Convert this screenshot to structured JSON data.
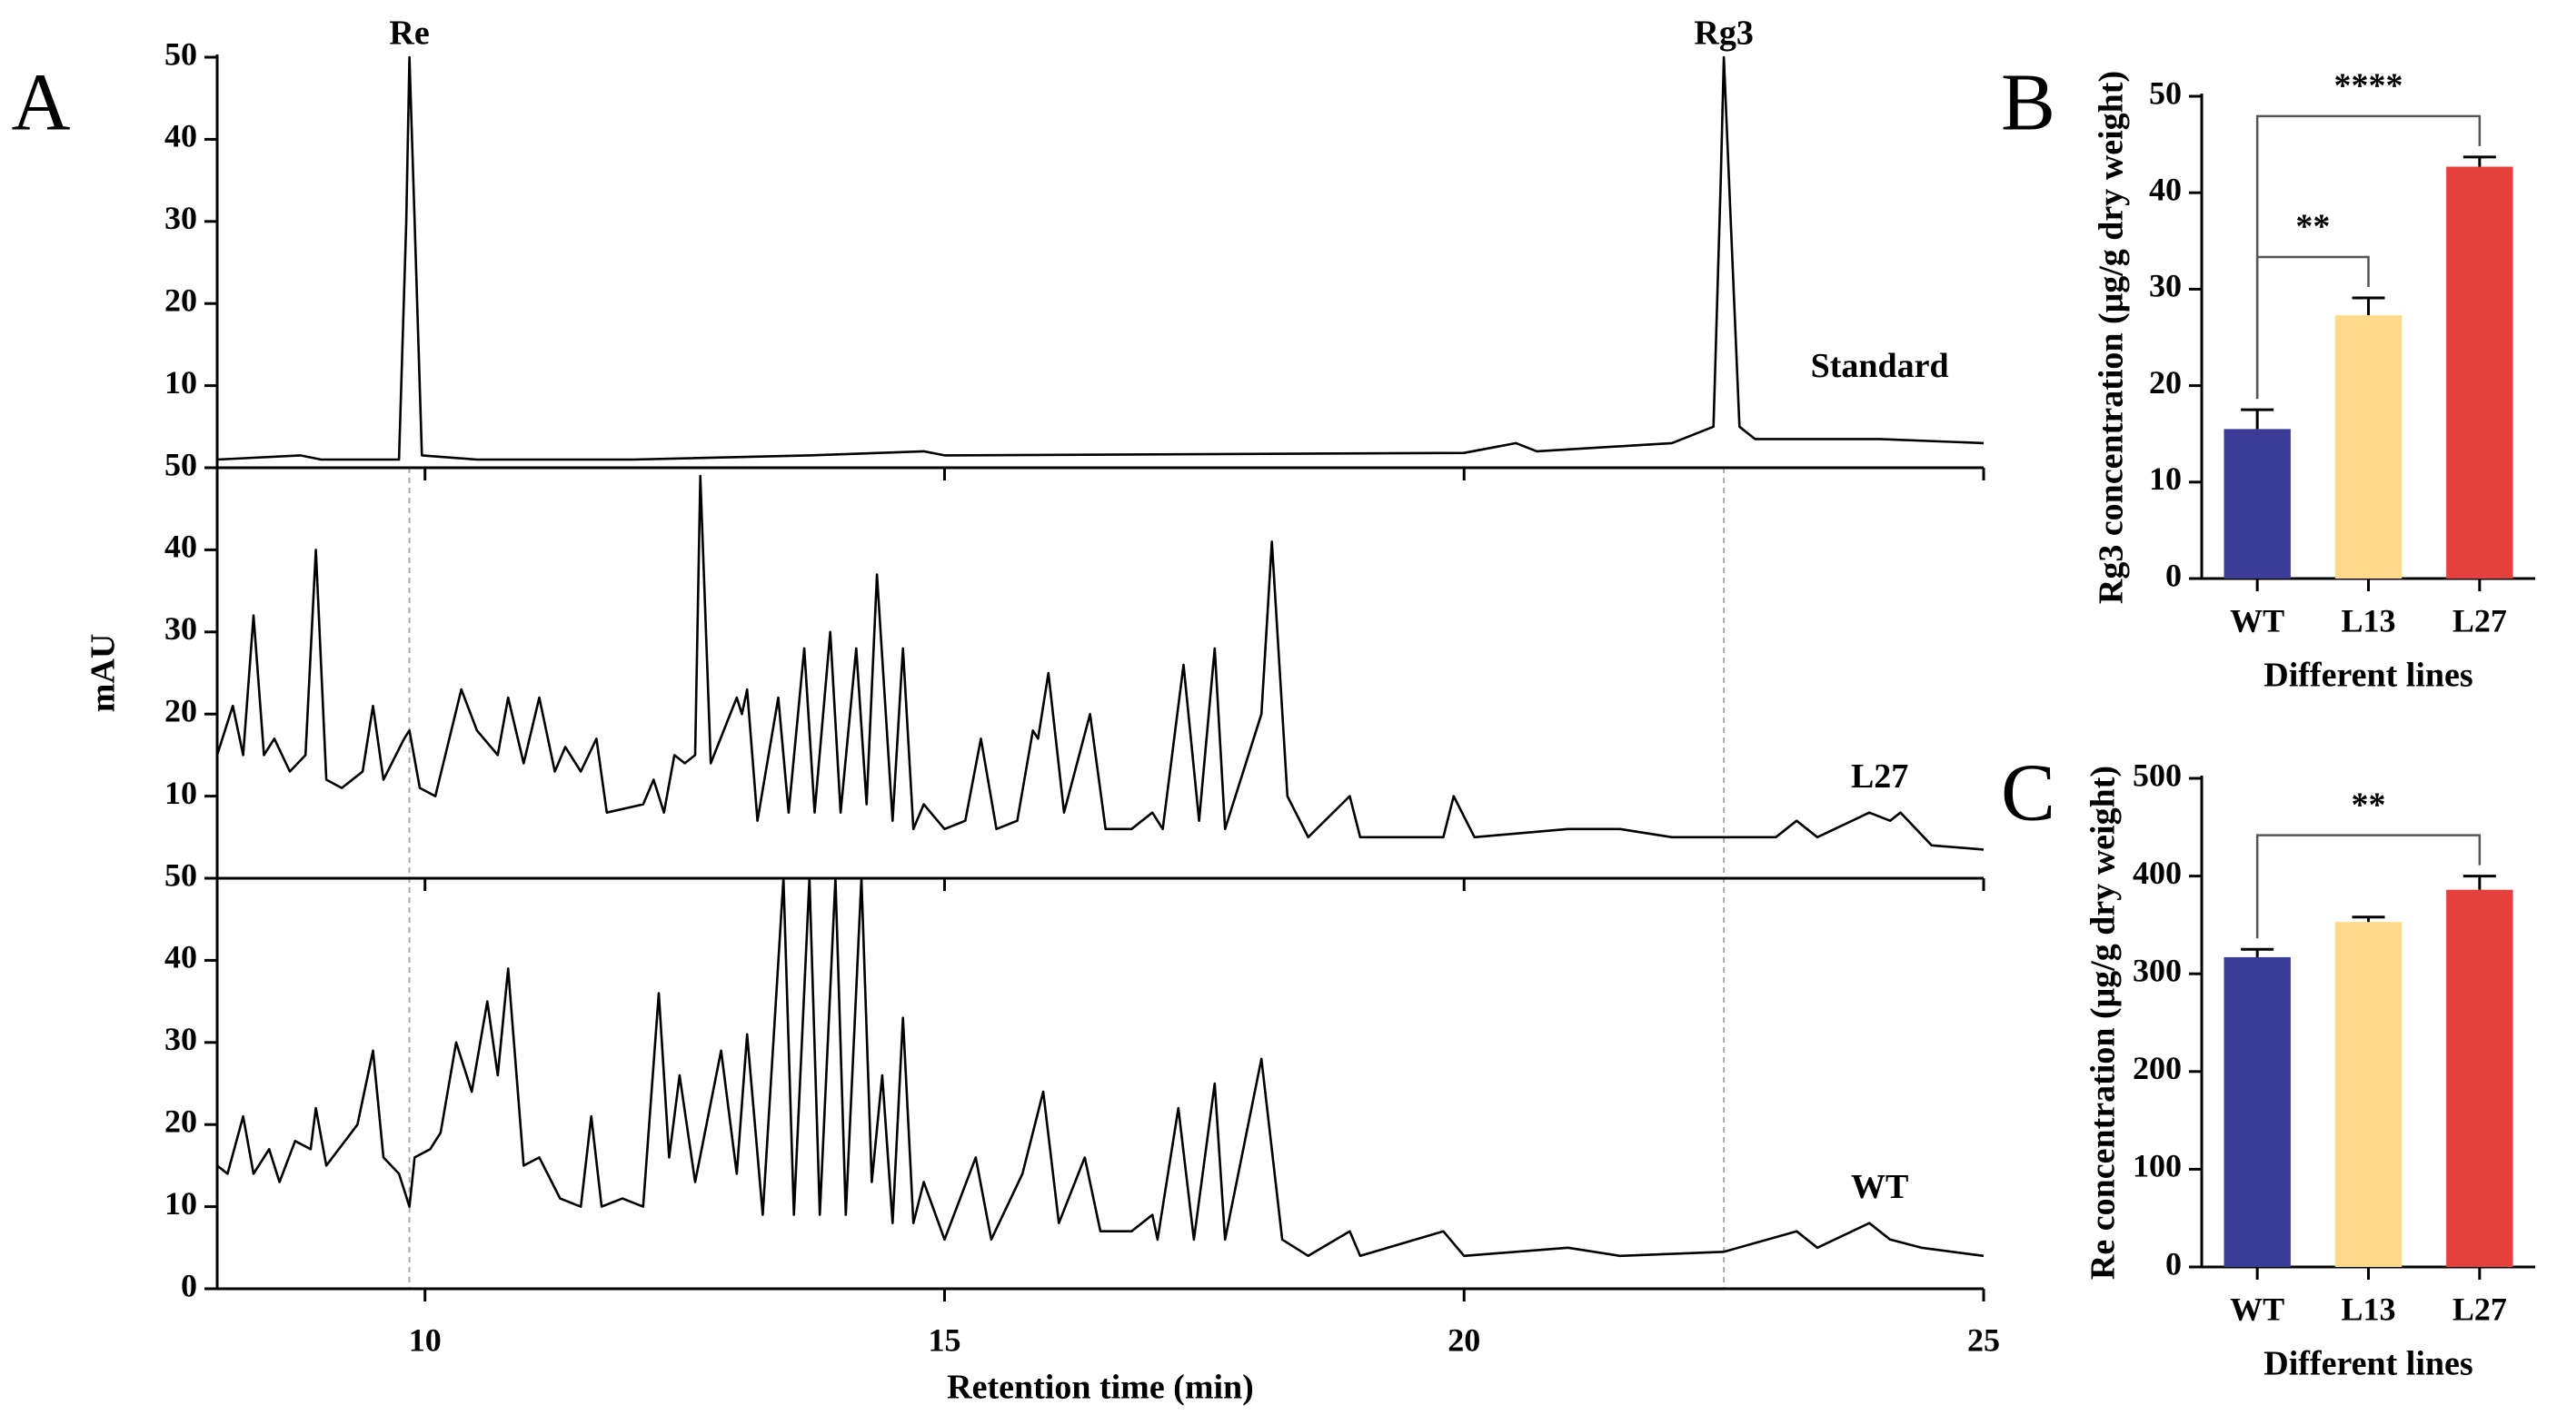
{
  "chart_data": [
    {
      "type": "chromatogram",
      "panel_label": "A",
      "ylabel": "mAU",
      "xlabel": "Retention time (min)",
      "xlim": [
        8,
        25
      ],
      "xticks": [
        10,
        15,
        20,
        25
      ],
      "ylim": [
        0,
        50
      ],
      "yticks": [
        0,
        10,
        20,
        30,
        40,
        50
      ],
      "annotations": [
        {
          "text": "Re",
          "x": 9.85
        },
        {
          "text": "Rg3",
          "x": 22.5
        }
      ],
      "series": [
        {
          "name": "Standard",
          "color": "#000000",
          "x": [
            8,
            8.8,
            9,
            9.75,
            9.82,
            9.85,
            9.9,
            9.97,
            10.5,
            12,
            13.7,
            14.8,
            15,
            20,
            20.5,
            20.7,
            22,
            22.4,
            22.47,
            22.5,
            22.55,
            22.65,
            22.8,
            24,
            25
          ],
          "values": [
            1,
            1.5,
            1,
            1,
            30,
            50,
            30,
            1.5,
            1,
            1,
            1.5,
            2,
            1.5,
            1.8,
            3,
            2,
            3,
            5,
            35,
            50,
            35,
            5,
            3.5,
            3.5,
            3
          ]
        },
        {
          "name": "L27",
          "color": "#000000",
          "x": [
            8,
            8.15,
            8.25,
            8.35,
            8.45,
            8.55,
            8.7,
            8.85,
            8.95,
            9.05,
            9.2,
            9.4,
            9.5,
            9.6,
            9.8,
            9.85,
            9.95,
            10.1,
            10.35,
            10.5,
            10.7,
            10.8,
            10.95,
            11.1,
            11.25,
            11.35,
            11.5,
            11.65,
            11.75,
            12.1,
            12.2,
            12.3,
            12.4,
            12.5,
            12.6,
            12.65,
            12.75,
            13,
            13.05,
            13.1,
            13.2,
            13.4,
            13.5,
            13.65,
            13.75,
            13.9,
            14,
            14.15,
            14.25,
            14.35,
            14.5,
            14.6,
            14.7,
            14.8,
            15,
            15.2,
            15.35,
            15.5,
            15.7,
            15.85,
            15.9,
            16,
            16.15,
            16.4,
            16.55,
            16.8,
            17,
            17.1,
            17.3,
            17.45,
            17.6,
            17.7,
            18.05,
            18.15,
            18.3,
            18.5,
            18.9,
            19,
            19.8,
            19.9,
            20.1,
            21,
            21.5,
            22,
            23,
            23.2,
            23.4,
            23.9,
            24.1,
            24.2,
            24.5,
            25
          ],
          "values": [
            15,
            21,
            15,
            32,
            15,
            17,
            13,
            15,
            40,
            12,
            11,
            13,
            21,
            12,
            17,
            18,
            11,
            10,
            23,
            18,
            15,
            22,
            14,
            22,
            13,
            16,
            13,
            17,
            8,
            9,
            12,
            8,
            15,
            14,
            15,
            49,
            14,
            22,
            20,
            23,
            7,
            22,
            8,
            28,
            8,
            30,
            8,
            28,
            9,
            37,
            7,
            28,
            6,
            9,
            6,
            7,
            17,
            6,
            7,
            18,
            17,
            25,
            8,
            20,
            6,
            6,
            8,
            6,
            26,
            7,
            28,
            6,
            20,
            41,
            10,
            5,
            10,
            5,
            5,
            10,
            5,
            6,
            6,
            5,
            5,
            7,
            5,
            8,
            7,
            8,
            4,
            3.5
          ]
        },
        {
          "name": "WT",
          "color": "#000000",
          "x": [
            8,
            8.1,
            8.25,
            8.35,
            8.5,
            8.6,
            8.75,
            8.9,
            8.95,
            9.05,
            9.35,
            9.5,
            9.6,
            9.75,
            9.85,
            9.9,
            10.05,
            10.15,
            10.3,
            10.45,
            10.6,
            10.7,
            10.8,
            10.95,
            11.1,
            11.3,
            11.5,
            11.6,
            11.7,
            11.9,
            12.1,
            12.25,
            12.35,
            12.45,
            12.6,
            12.85,
            13,
            13.1,
            13.25,
            13.45,
            13.55,
            13.7,
            13.8,
            13.95,
            14.05,
            14.2,
            14.3,
            14.4,
            14.5,
            14.6,
            14.7,
            14.8,
            15,
            15.3,
            15.45,
            15.75,
            15.95,
            16.1,
            16.35,
            16.5,
            16.8,
            17,
            17.05,
            17.25,
            17.4,
            17.6,
            17.7,
            18.05,
            18.25,
            18.5,
            18.9,
            19,
            19.8,
            20,
            21,
            21.5,
            22.5,
            23.2,
            23.4,
            23.9,
            24.1,
            24.4,
            25
          ],
          "values": [
            15,
            14,
            21,
            14,
            17,
            13,
            18,
            17,
            22,
            15,
            20,
            29,
            16,
            14,
            10,
            16,
            17,
            19,
            30,
            24,
            35,
            26,
            39,
            15,
            16,
            11,
            10,
            21,
            10,
            11,
            10,
            36,
            16,
            26,
            13,
            29,
            14,
            31,
            9,
            50,
            9,
            50,
            9,
            50,
            9,
            50,
            13,
            26,
            8,
            33,
            8,
            13,
            6,
            16,
            6,
            14,
            24,
            8,
            16,
            7,
            7,
            9,
            6,
            22,
            6,
            25,
            6,
            28,
            6,
            4,
            7,
            4,
            7,
            4,
            5,
            4,
            4.5,
            7,
            5,
            8,
            6,
            5,
            4
          ]
        }
      ]
    },
    {
      "type": "bar",
      "panel_label": "B",
      "ylabel": "Rg3 concentration (μg/g dry weight)",
      "xlabel": "Different lines",
      "categories": [
        "WT",
        "L13",
        "L27"
      ],
      "values": [
        15.5,
        27.3,
        42.7
      ],
      "errors": [
        2,
        1.8,
        1
      ],
      "colors": [
        "#3b3b98",
        "#fdd98c",
        "#e6403e"
      ],
      "ylim": [
        0,
        50
      ],
      "yticks": [
        0,
        10,
        20,
        30,
        40,
        50
      ],
      "significance": [
        {
          "pair": [
            "WT",
            "L13"
          ],
          "label": "**"
        },
        {
          "pair": [
            "WT",
            "L27"
          ],
          "label": "****"
        }
      ]
    },
    {
      "type": "bar",
      "panel_label": "C",
      "ylabel": "Re concentration (μg/g dry weight)",
      "xlabel": "Different lines",
      "categories": [
        "WT",
        "L13",
        "L27"
      ],
      "values": [
        317,
        353,
        386
      ],
      "errors": [
        8,
        5,
        14
      ],
      "colors": [
        "#3b3b98",
        "#fdd98c",
        "#e6403e"
      ],
      "ylim": [
        0,
        500
      ],
      "yticks": [
        0,
        100,
        200,
        300,
        400,
        500
      ],
      "significance": [
        {
          "pair": [
            "WT",
            "L27"
          ],
          "label": "**"
        }
      ]
    }
  ]
}
